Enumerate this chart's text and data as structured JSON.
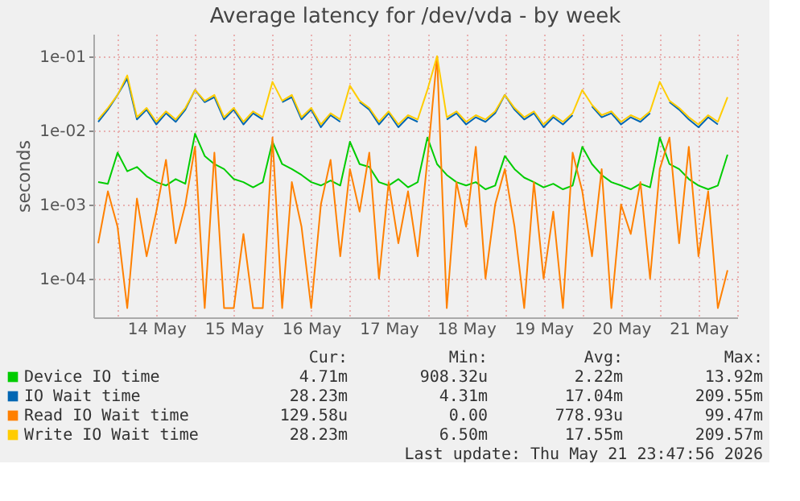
{
  "chart_data": {
    "type": "line",
    "title": "Average latency for /dev/vda - by week",
    "ylabel": "seconds",
    "x": [
      "2026-05-13T18:00",
      "2026-05-13T21:00",
      "2026-05-14T00:00",
      "2026-05-14T03:00",
      "2026-05-14T06:00",
      "2026-05-14T09:00",
      "2026-05-14T12:00",
      "2026-05-14T15:00",
      "2026-05-14T18:00",
      "2026-05-14T21:00",
      "2026-05-15T00:00",
      "2026-05-15T03:00",
      "2026-05-15T06:00",
      "2026-05-15T09:00",
      "2026-05-15T12:00",
      "2026-05-15T15:00",
      "2026-05-15T18:00",
      "2026-05-15T21:00",
      "2026-05-16T00:00",
      "2026-05-16T03:00",
      "2026-05-16T06:00",
      "2026-05-16T09:00",
      "2026-05-16T12:00",
      "2026-05-16T15:00",
      "2026-05-16T18:00",
      "2026-05-16T21:00",
      "2026-05-17T00:00",
      "2026-05-17T03:00",
      "2026-05-17T06:00",
      "2026-05-17T09:00",
      "2026-05-17T12:00",
      "2026-05-17T15:00",
      "2026-05-17T18:00",
      "2026-05-17T21:00",
      "2026-05-18T00:00",
      "2026-05-18T03:00",
      "2026-05-18T06:00",
      "2026-05-18T09:00",
      "2026-05-18T12:00",
      "2026-05-18T15:00",
      "2026-05-18T18:00",
      "2026-05-18T21:00",
      "2026-05-19T00:00",
      "2026-05-19T03:00",
      "2026-05-19T06:00",
      "2026-05-19T09:00",
      "2026-05-19T12:00",
      "2026-05-19T15:00",
      "2026-05-19T18:00",
      "2026-05-19T21:00",
      "2026-05-20T00:00",
      "2026-05-20T03:00",
      "2026-05-20T06:00",
      "2026-05-20T09:00",
      "2026-05-20T12:00",
      "2026-05-20T15:00",
      "2026-05-20T18:00",
      "2026-05-20T21:00",
      "2026-05-21T00:00",
      "2026-05-21T03:00",
      "2026-05-21T06:00",
      "2026-05-21T09:00",
      "2026-05-21T12:00",
      "2026-05-21T15:00",
      "2026-05-21T18:00",
      "2026-05-21T21:00"
    ],
    "series": [
      {
        "name": "Device IO time",
        "color": "#00cc00",
        "values": [
          0.002,
          0.0019,
          0.005,
          0.0028,
          0.0032,
          0.0024,
          0.002,
          0.0018,
          0.0022,
          0.0019,
          0.009,
          0.0045,
          0.0035,
          0.003,
          0.0022,
          0.002,
          0.0017,
          0.002,
          0.007,
          0.0035,
          0.003,
          0.0025,
          0.002,
          0.0018,
          0.0021,
          0.0018,
          0.007,
          0.0035,
          0.0032,
          0.002,
          0.0018,
          0.0022,
          0.0017,
          0.002,
          0.008,
          0.0035,
          0.0025,
          0.002,
          0.0018,
          0.002,
          0.0016,
          0.0018,
          0.0045,
          0.003,
          0.0023,
          0.002,
          0.0017,
          0.0019,
          0.0016,
          0.0018,
          0.006,
          0.0035,
          0.0025,
          0.002,
          0.0018,
          0.0016,
          0.0019,
          0.0017,
          0.008,
          0.0035,
          0.003,
          0.0022,
          0.0018,
          0.0016,
          0.0018,
          0.0047
        ]
      },
      {
        "name": "IO Wait time",
        "color": "#0066b3",
        "values": [
          0.013,
          0.019,
          0.03,
          0.05,
          0.014,
          0.019,
          0.012,
          0.017,
          0.013,
          0.019,
          0.035,
          0.024,
          0.028,
          0.014,
          0.019,
          0.012,
          0.017,
          0.014,
          null,
          0.024,
          0.028,
          0.014,
          0.019,
          0.011,
          0.016,
          0.013,
          null,
          0.024,
          0.019,
          0.012,
          0.017,
          0.011,
          0.015,
          0.013,
          null,
          null,
          0.014,
          0.017,
          0.012,
          0.015,
          0.013,
          0.017,
          0.03,
          0.019,
          0.014,
          0.017,
          0.011,
          0.015,
          0.012,
          0.016,
          null,
          0.021,
          0.015,
          0.017,
          0.012,
          0.015,
          0.013,
          0.017,
          null,
          0.024,
          0.019,
          0.014,
          0.011,
          0.015,
          0.012,
          null
        ]
      },
      {
        "name": "Read IO Wait time",
        "color": "#ff8000",
        "values": [
          0.0003,
          0.0015,
          0.0005,
          4e-05,
          0.0012,
          0.0002,
          0.0008,
          0.004,
          0.0003,
          0.001,
          0.006,
          4e-05,
          0.005,
          4e-05,
          4e-05,
          0.0004,
          4e-05,
          4e-05,
          0.008,
          4e-05,
          0.002,
          0.0005,
          4e-05,
          0.001,
          0.004,
          0.0002,
          0.003,
          0.0008,
          0.005,
          0.0001,
          0.002,
          0.0003,
          0.0015,
          0.0002,
          0.004,
          0.099,
          4e-05,
          0.002,
          0.0005,
          0.006,
          0.0001,
          0.001,
          0.003,
          0.0005,
          4e-05,
          0.002,
          0.0001,
          0.0008,
          4e-05,
          0.005,
          0.0015,
          0.0002,
          0.003,
          4e-05,
          0.001,
          0.0004,
          0.002,
          0.0001,
          0.003,
          0.008,
          0.0003,
          0.006,
          0.0002,
          0.0015,
          4e-05,
          0.00013
        ]
      },
      {
        "name": "Write IO Wait time",
        "color": "#ffcc00",
        "values": [
          0.014,
          0.02,
          0.03,
          0.055,
          0.015,
          0.02,
          0.013,
          0.018,
          0.014,
          0.02,
          0.035,
          0.025,
          0.03,
          0.015,
          0.02,
          0.013,
          0.018,
          0.015,
          0.045,
          0.025,
          0.03,
          0.015,
          0.02,
          0.012,
          0.017,
          0.014,
          0.04,
          0.025,
          0.02,
          0.013,
          0.018,
          0.012,
          0.016,
          0.014,
          0.035,
          0.1,
          0.015,
          0.018,
          0.013,
          0.016,
          0.014,
          0.018,
          0.03,
          0.02,
          0.015,
          0.018,
          0.012,
          0.016,
          0.013,
          0.017,
          0.035,
          0.022,
          0.016,
          0.018,
          0.013,
          0.016,
          0.014,
          0.018,
          0.045,
          0.025,
          0.02,
          0.015,
          0.012,
          0.016,
          0.013,
          0.028
        ]
      }
    ],
    "xlim": [
      "2026-05-13T16:30",
      "2026-05-22T00:00"
    ],
    "xticks": [
      {
        "value": "2026-05-14T00:00",
        "label": null
      },
      {
        "value": "2026-05-14T12:00",
        "label": "14 May"
      },
      {
        "value": "2026-05-15T00:00",
        "label": null
      },
      {
        "value": "2026-05-15T12:00",
        "label": "15 May"
      },
      {
        "value": "2026-05-16T00:00",
        "label": null
      },
      {
        "value": "2026-05-16T12:00",
        "label": "16 May"
      },
      {
        "value": "2026-05-17T00:00",
        "label": null
      },
      {
        "value": "2026-05-17T12:00",
        "label": "17 May"
      },
      {
        "value": "2026-05-18T00:00",
        "label": null
      },
      {
        "value": "2026-05-18T12:00",
        "label": "18 May"
      },
      {
        "value": "2026-05-19T00:00",
        "label": null
      },
      {
        "value": "2026-05-19T12:00",
        "label": "19 May"
      },
      {
        "value": "2026-05-20T00:00",
        "label": null
      },
      {
        "value": "2026-05-20T12:00",
        "label": "20 May"
      },
      {
        "value": "2026-05-21T00:00",
        "label": null
      },
      {
        "value": "2026-05-21T12:00",
        "label": "21 May"
      },
      {
        "value": "2026-05-22T00:00",
        "label": null
      }
    ],
    "ylim": [
      3e-05,
      0.2
    ],
    "yticks": [
      {
        "value": 0.0001,
        "label": "1e-04"
      },
      {
        "value": 0.001,
        "label": "1e-03"
      },
      {
        "value": 0.01,
        "label": "1e-02"
      },
      {
        "value": 0.1,
        "label": "1e-01"
      }
    ],
    "log": true,
    "grid": true,
    "legend": "bottom",
    "line_style": "solid",
    "annotations": [
      "Cur:",
      "Min:",
      "Avg:",
      "Max:",
      "4.71m",
      "908.32u",
      "2.22m",
      "13.92m",
      "28.23m",
      "4.31m",
      "17.04m",
      "209.55m",
      "129.58u",
      "0.00",
      "778.93u",
      "99.47m",
      "28.23m",
      "6.50m",
      "17.55m",
      "209.57m",
      "Last update: Thu May 21 23:47:56 2026"
    ]
  }
}
